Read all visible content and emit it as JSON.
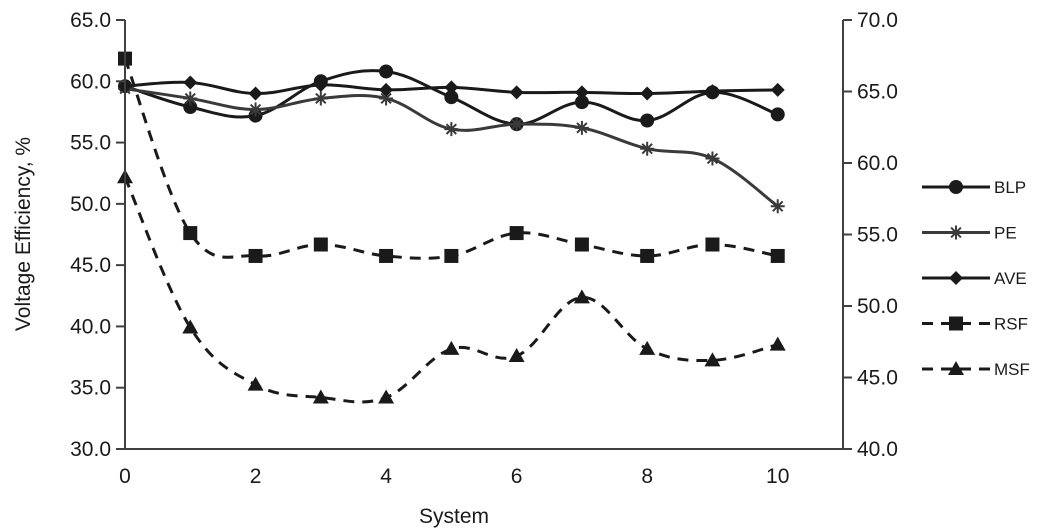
{
  "chart_data": {
    "type": "line",
    "xlabel": "System",
    "ylabel": "Voltage Efficiency, %",
    "xlim": [
      0,
      11
    ],
    "x_ticks": [
      "0",
      "2",
      "4",
      "6",
      "8",
      "10"
    ],
    "x_tick_values": [
      0,
      2,
      4,
      6,
      8,
      10
    ],
    "ylim_left": [
      30,
      65
    ],
    "y_ticks_left": [
      "30.0",
      "35.0",
      "40.0",
      "45.0",
      "50.0",
      "55.0",
      "60.0",
      "65.0"
    ],
    "ylim_right": [
      40,
      70
    ],
    "y_ticks_right": [
      "40.0",
      "45.0",
      "50.0",
      "55.0",
      "60.0",
      "65.0",
      "70.0"
    ],
    "legend_position": "right",
    "x": [
      0,
      1,
      2,
      3,
      4,
      5,
      6,
      7,
      8,
      9,
      10
    ],
    "series": [
      {
        "name": "BLP",
        "axis": "left",
        "marker": "circle",
        "dash": "solid",
        "color": "#1a1a1a",
        "values": [
          59.6,
          57.9,
          57.2,
          60.0,
          60.8,
          58.7,
          56.5,
          58.3,
          56.8,
          59.1,
          57.3
        ]
      },
      {
        "name": "PE",
        "axis": "left",
        "marker": "asterisk",
        "dash": "solid",
        "color": "#3a3a3a",
        "values": [
          59.4,
          58.6,
          57.7,
          58.6,
          58.6,
          56.1,
          56.5,
          56.2,
          54.5,
          53.7,
          49.8
        ]
      },
      {
        "name": "AVE",
        "axis": "left",
        "marker": "diamond",
        "dash": "solid",
        "color": "#1a1a1a",
        "values": [
          59.6,
          59.9,
          59.0,
          59.7,
          59.3,
          59.5,
          59.1,
          59.1,
          59.0,
          59.2,
          59.3
        ]
      },
      {
        "name": "RSF",
        "axis": "right",
        "marker": "square",
        "dash": "dashed",
        "color": "#1a1a1a",
        "values": [
          67.3,
          55.1,
          53.5,
          54.3,
          53.5,
          53.5,
          55.1,
          54.3,
          53.5,
          54.3,
          53.5
        ]
      },
      {
        "name": "MSF",
        "axis": "right",
        "marker": "triangle",
        "dash": "dashed",
        "color": "#1a1a1a",
        "values": [
          59.0,
          48.5,
          44.5,
          43.6,
          43.6,
          47.0,
          46.5,
          50.6,
          47.0,
          46.2,
          47.3
        ]
      }
    ]
  }
}
